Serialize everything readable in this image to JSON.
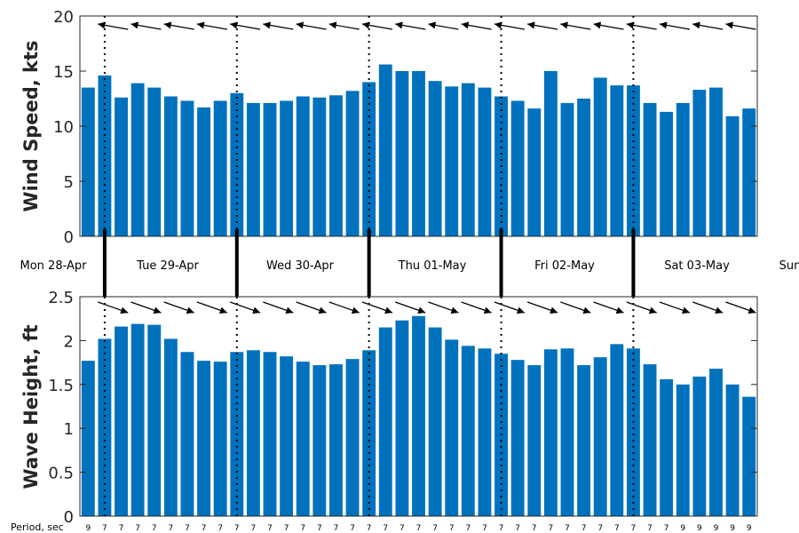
{
  "colors": {
    "bar": "#0072bd",
    "axis": "#262626",
    "marker": "#000000",
    "background": "#ffffff"
  },
  "day_labels": [
    "Mon 28-Apr",
    "Tue 29-Apr",
    "Wed 30-Apr",
    "Thu 01-May",
    "Fri 02-May",
    "Sat 03-May",
    "Sun"
  ],
  "period_label": "Period, sec",
  "chart_data": [
    {
      "type": "bar",
      "ylabel": "Wind Speed, kts",
      "ylim": [
        0,
        20
      ],
      "yticks": [
        "0",
        "5",
        "10",
        "15",
        "20"
      ],
      "grid": false,
      "values": [
        13.5,
        14.6,
        12.6,
        13.9,
        13.5,
        12.7,
        12.3,
        11.7,
        12.3,
        13.0,
        12.1,
        12.1,
        12.3,
        12.7,
        12.6,
        12.8,
        13.2,
        14.0,
        15.6,
        15.0,
        15.0,
        14.1,
        13.6,
        13.9,
        13.5,
        12.7,
        12.3,
        11.6,
        15.0,
        12.1,
        12.5,
        14.4,
        13.7,
        13.7,
        12.1,
        11.3,
        12.1,
        13.3,
        13.5,
        10.9,
        11.6
      ],
      "direction_arrows": "pointing from the east toward the west-northwest"
    },
    {
      "type": "bar",
      "ylabel": "Wave Height, ft",
      "ylim": [
        0,
        2.5
      ],
      "yticks": [
        "0",
        "0.5",
        "1",
        "1.5",
        "2",
        "2.5"
      ],
      "grid": false,
      "values": [
        1.77,
        2.02,
        2.16,
        2.19,
        2.18,
        2.02,
        1.87,
        1.77,
        1.76,
        1.87,
        1.89,
        1.87,
        1.82,
        1.76,
        1.72,
        1.73,
        1.79,
        1.89,
        2.15,
        2.23,
        2.28,
        2.15,
        2.01,
        1.94,
        1.91,
        1.85,
        1.78,
        1.72,
        1.9,
        1.91,
        1.72,
        1.81,
        1.96,
        1.91,
        1.73,
        1.56,
        1.5,
        1.59,
        1.68,
        1.5,
        1.36
      ],
      "periods_sec": [
        "9",
        "7",
        "7",
        "7",
        "7",
        "7",
        "7",
        "7",
        "7",
        "7",
        "7",
        "7",
        "7",
        "7",
        "7",
        "7",
        "7",
        "7",
        "7",
        "7",
        "7",
        "7",
        "7",
        "7",
        "7",
        "7",
        "7",
        "7",
        "7",
        "7",
        "7",
        "7",
        "7",
        "7",
        "7",
        "7",
        "9",
        "9",
        "9",
        "9",
        "9"
      ],
      "direction_arrows": "pointing toward the southeast"
    }
  ]
}
